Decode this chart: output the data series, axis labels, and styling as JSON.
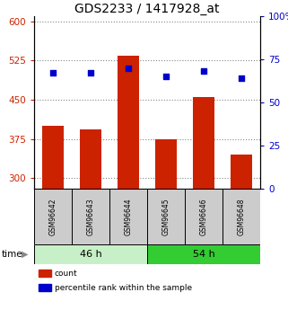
{
  "title": "GDS2233 / 1417928_at",
  "categories": [
    "GSM96642",
    "GSM96643",
    "GSM96644",
    "GSM96645",
    "GSM96646",
    "GSM96648"
  ],
  "bar_values": [
    400,
    393,
    535,
    375,
    455,
    345
  ],
  "percentile_values": [
    67,
    67,
    70,
    65,
    68,
    64
  ],
  "bar_color": "#cc2200",
  "percentile_color": "#0000cc",
  "left_ylim": [
    280,
    610
  ],
  "right_ylim": [
    0,
    100
  ],
  "left_yticks": [
    300,
    375,
    450,
    525,
    600
  ],
  "right_yticks": [
    0,
    25,
    50,
    75,
    100
  ],
  "left_yticklabels": [
    "300",
    "375",
    "450",
    "525",
    "600"
  ],
  "right_yticklabels": [
    "0",
    "25",
    "50",
    "75",
    "100%"
  ],
  "groups": [
    {
      "label": "46 h",
      "indices": [
        0,
        1,
        2
      ],
      "color": "#c8f0c8"
    },
    {
      "label": "54 h",
      "indices": [
        3,
        4,
        5
      ],
      "color": "#33cc33"
    }
  ],
  "time_label": "time",
  "legend_items": [
    {
      "label": "count",
      "color": "#cc2200"
    },
    {
      "label": "percentile rank within the sample",
      "color": "#0000cc"
    }
  ],
  "grid_color": "#888888",
  "plot_bg": "#ffffff",
  "bar_width": 0.55,
  "title_fontsize": 10,
  "tick_label_fontsize": 7.5,
  "sample_label_fontsize": 5.5,
  "group_label_fontsize": 8,
  "legend_fontsize": 6.5
}
